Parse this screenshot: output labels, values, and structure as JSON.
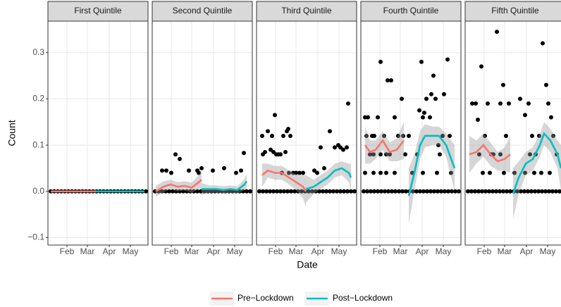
{
  "chart_data": {
    "type": "scatter",
    "x_label": "Date",
    "y_label": "Count",
    "xlim": [
      4,
      146
    ],
    "xticks": [
      {
        "value": 31,
        "label": "Feb"
      },
      {
        "value": 60,
        "label": "Mar"
      },
      {
        "value": 91,
        "label": "Apr"
      },
      {
        "value": 121,
        "label": "May"
      }
    ],
    "ylim": [
      -0.116,
      0.368
    ],
    "yticks": [
      {
        "value": -0.1,
        "label": "−0.1"
      },
      {
        "value": 0,
        "label": "0.0"
      },
      0.1,
      0.2,
      0.3
    ],
    "grid": true,
    "legend": "bottom",
    "point_color": "#000000",
    "band_color": "#999999",
    "series": [
      {
        "name": "Pre−Lockdown",
        "color": "#F8766D"
      },
      {
        "name": "Post−Lockdown",
        "color": "#00BFC4"
      }
    ],
    "facets": [
      {
        "title": "First Quintile",
        "points": {
          "x": [
            8,
            13,
            18,
            23,
            28,
            33,
            38,
            43,
            48,
            53,
            58,
            63,
            68,
            73,
            78,
            83,
            88,
            93,
            98,
            103,
            108,
            113,
            118,
            123,
            128,
            133,
            138,
            143
          ],
          "values": [
            0,
            0,
            0,
            0,
            0,
            0,
            0,
            0,
            0,
            0,
            0,
            0,
            0,
            0,
            0,
            0,
            0,
            0,
            0,
            0,
            0,
            0,
            0,
            0,
            0,
            0,
            0,
            0
          ]
        },
        "smooth": [
          {
            "x": [
              8,
              40,
              72
            ],
            "values": [
              0,
              0,
              0
            ],
            "lower": [
              0,
              0,
              0
            ],
            "upper": [
              0,
              0,
              0
            ]
          },
          {
            "x": [
              72,
              106,
              141
            ],
            "values": [
              0,
              0,
              0
            ],
            "lower": [
              0,
              0,
              0
            ],
            "upper": [
              0,
              0,
              0
            ]
          }
        ]
      },
      {
        "title": "Second Quintile",
        "points": {
          "x": [
            8,
            13,
            18,
            23,
            28,
            33,
            38,
            43,
            48,
            53,
            58,
            63,
            68,
            73,
            78,
            83,
            88,
            93,
            98,
            103,
            108,
            113,
            118,
            123,
            128,
            133,
            138,
            143,
            18,
            24,
            31,
            37,
            43,
            56,
            70,
            74,
            90,
            106,
            123,
            130,
            134,
            68
          ],
          "values": [
            0,
            0,
            0,
            0,
            0,
            0,
            0,
            0,
            0,
            0,
            0,
            0,
            0,
            0,
            0,
            0,
            0,
            0,
            0,
            0,
            0,
            0,
            0,
            0,
            0,
            0,
            0,
            0,
            0.045,
            0.045,
            0.04,
            0.08,
            0.07,
            0.045,
            0.04,
            0.05,
            0.045,
            0.05,
            0.04,
            0.045,
            0.083,
            0.045
          ]
        },
        "smooth": [
          {
            "x": [
              9,
              20,
              30,
              40,
              50,
              60,
              70,
              74
            ],
            "values": [
              0,
              0.01,
              0.015,
              0.01,
              0.012,
              0.008,
              0.02,
              0.025
            ],
            "lower": [
              -0.012,
              -0.002,
              0.005,
              0.0,
              0.002,
              -0.003,
              0.005,
              0.005
            ],
            "upper": [
              0.012,
              0.022,
              0.025,
              0.02,
              0.022,
              0.019,
              0.035,
              0.045
            ]
          },
          {
            "x": [
              74,
              85,
              95,
              105,
              115,
              125,
              135,
              138
            ],
            "values": [
              0.005,
              0.005,
              0.005,
              0.003,
              0.005,
              0.003,
              0.015,
              0.022
            ],
            "lower": [
              -0.008,
              -0.003,
              -0.003,
              -0.005,
              -0.003,
              -0.005,
              0.003,
              0.005
            ],
            "upper": [
              0.018,
              0.013,
              0.013,
              0.011,
              0.013,
              0.011,
              0.027,
              0.039
            ]
          }
        ]
      },
      {
        "title": "Third Quintile",
        "points": {
          "x": [
            8,
            13,
            18,
            23,
            28,
            33,
            38,
            43,
            48,
            53,
            58,
            63,
            68,
            73,
            78,
            83,
            88,
            93,
            98,
            103,
            108,
            113,
            118,
            123,
            128,
            133,
            138,
            143,
            12,
            13,
            16,
            20,
            24,
            26,
            28,
            30,
            32,
            35,
            38,
            42,
            45,
            47,
            49,
            52,
            40,
            50,
            56,
            60,
            65,
            70,
            86,
            95,
            100,
            108,
            115,
            120,
            123,
            127,
            132,
            134,
            90
          ],
          "values": [
            0,
            0,
            0,
            0,
            0,
            0,
            0,
            0,
            0,
            0,
            0,
            0,
            0,
            0,
            0,
            0,
            0,
            0,
            0,
            0,
            0,
            0,
            0,
            0,
            0,
            0,
            0,
            0,
            0.12,
            0.08,
            0.085,
            0.13,
            0.09,
            0.12,
            0.085,
            0.165,
            0.08,
            0.08,
            0.08,
            0.12,
            0.085,
            0.13,
            0.135,
            0.12,
            0.04,
            0.04,
            0.04,
            0.04,
            0.04,
            0.04,
            0.045,
            0.095,
            0.05,
            0.13,
            0.095,
            0.1,
            0.095,
            0.09,
            0.095,
            0.19,
            0.04
          ]
        },
        "smooth": [
          {
            "x": [
              12,
              20,
              30,
              40,
              50,
              60,
              70,
              74
            ],
            "values": [
              0.035,
              0.045,
              0.04,
              0.04,
              0.03,
              0.02,
              0.01,
              0.0
            ],
            "lower": [
              0.01,
              0.03,
              0.025,
              0.025,
              0.015,
              0.003,
              -0.015,
              -0.035
            ],
            "upper": [
              0.06,
              0.06,
              0.055,
              0.055,
              0.045,
              0.037,
              0.035,
              0.035
            ]
          },
          {
            "x": [
              74,
              85,
              95,
              105,
              115,
              125,
              135,
              138
            ],
            "values": [
              0.005,
              0.01,
              0.02,
              0.03,
              0.045,
              0.05,
              0.04,
              0.03
            ],
            "lower": [
              -0.025,
              -0.005,
              0.005,
              0.015,
              0.03,
              0.035,
              0.02,
              0.0
            ],
            "upper": [
              0.035,
              0.025,
              0.035,
              0.045,
              0.06,
              0.065,
              0.06,
              0.06
            ]
          }
        ]
      },
      {
        "title": "Fourth Quintile",
        "points": {
          "x": [
            8,
            13,
            18,
            23,
            28,
            33,
            38,
            43,
            48,
            53,
            58,
            63,
            68,
            73,
            78,
            83,
            88,
            93,
            98,
            103,
            108,
            113,
            118,
            123,
            128,
            133,
            138,
            143,
            10,
            12,
            14,
            20,
            23,
            28,
            32,
            37,
            42,
            47,
            52,
            57,
            62,
            64,
            17,
            22,
            32,
            40,
            45,
            67,
            10,
            22,
            32,
            40,
            52,
            72,
            77,
            84,
            87,
            90,
            92,
            94,
            97,
            102,
            104,
            107,
            110,
            114,
            116,
            120,
            122,
            127,
            130,
            132,
            112,
            92
          ],
          "values": [
            0,
            0,
            0,
            0,
            0,
            0,
            0,
            0,
            0,
            0,
            0,
            0,
            0,
            0,
            0,
            0,
            0,
            0,
            0,
            0,
            0,
            0,
            0,
            0,
            0,
            0,
            0,
            0,
            0.16,
            0.12,
            0.16,
            0.12,
            0.12,
            0.16,
            0.28,
            0.12,
            0.24,
            0.24,
            0.16,
            0.12,
            0.2,
            0.12,
            0.08,
            0.08,
            0.08,
            0.08,
            0.08,
            0.08,
            0.04,
            0.04,
            0.04,
            0.04,
            0.04,
            0.12,
            0.04,
            0.08,
            0.175,
            0.28,
            0.16,
            0.17,
            0.2,
            0.16,
            0.21,
            0.25,
            0.2,
            0.1,
            0.08,
            0.12,
            0.21,
            0.285,
            0.12,
            0.04,
            0.04,
            0.04
          ]
        },
        "smooth": [
          {
            "x": [
              10,
              17,
              25,
              35,
              45,
              55,
              65
            ],
            "values": [
              0.1,
              0.085,
              0.09,
              0.11,
              0.085,
              0.09,
              0.11
            ],
            "lower": [
              0.06,
              0.06,
              0.07,
              0.09,
              0.065,
              0.065,
              0.07
            ],
            "upper": [
              0.14,
              0.11,
              0.11,
              0.13,
              0.105,
              0.115,
              0.15
            ]
          },
          {
            "x": [
              72,
              80,
              88,
              95,
              105,
              115,
              125,
              137
            ],
            "values": [
              -0.01,
              0.04,
              0.1,
              0.12,
              0.12,
              0.12,
              0.1,
              0.05
            ],
            "lower": [
              -0.07,
              0.0,
              0.07,
              0.095,
              0.1,
              0.1,
              0.075,
              0.0
            ],
            "upper": [
              0.05,
              0.08,
              0.13,
              0.145,
              0.14,
              0.14,
              0.125,
              0.1
            ]
          }
        ]
      },
      {
        "title": "Fifth Quintile",
        "points": {
          "x": [
            8,
            13,
            18,
            23,
            28,
            33,
            38,
            43,
            48,
            53,
            58,
            63,
            68,
            73,
            78,
            83,
            88,
            93,
            98,
            103,
            108,
            113,
            118,
            123,
            128,
            133,
            138,
            143,
            14,
            19,
            22,
            27,
            32,
            36,
            41,
            49,
            54,
            58,
            62,
            66,
            24,
            29,
            39,
            44,
            54,
            59,
            74,
            82,
            89,
            94,
            99,
            104,
            109,
            114,
            119,
            122,
            126,
            129,
            134,
            96,
            102,
            112,
            124,
            89
          ],
          "values": [
            0,
            0,
            0,
            0,
            0,
            0,
            0,
            0,
            0,
            0,
            0,
            0,
            0,
            0,
            0,
            0,
            0,
            0,
            0,
            0,
            0,
            0,
            0,
            0,
            0,
            0,
            0,
            0,
            0.19,
            0.19,
            0.155,
            0.27,
            0.12,
            0.19,
            0.08,
            0.345,
            0.19,
            0.23,
            0.12,
            0.19,
            0.08,
            0.04,
            0.04,
            0.08,
            0.08,
            0.04,
            0.04,
            0.2,
            0.165,
            0.19,
            0.12,
            0.08,
            0.12,
            0.32,
            0.23,
            0.19,
            0.16,
            0.12,
            0.08,
            0.08,
            0.04,
            0.04,
            0.04,
            0.04
          ]
        },
        "smooth": [
          {
            "x": [
              10,
              20,
              30,
              40,
              50,
              60,
              68
            ],
            "values": [
              0.08,
              0.085,
              0.1,
              0.08,
              0.065,
              0.07,
              0.08
            ],
            "lower": [
              0.04,
              0.06,
              0.075,
              0.055,
              0.045,
              0.045,
              0.04
            ],
            "upper": [
              0.12,
              0.11,
              0.125,
              0.105,
              0.085,
              0.095,
              0.12
            ]
          },
          {
            "x": [
              72,
              80,
              90,
              100,
              110,
              116,
              125,
              135,
              140
            ],
            "values": [
              -0.005,
              0.03,
              0.06,
              0.07,
              0.1,
              0.125,
              0.11,
              0.08,
              0.05
            ],
            "lower": [
              -0.06,
              -0.005,
              0.035,
              0.045,
              0.075,
              0.1,
              0.085,
              0.05,
              0.0
            ],
            "upper": [
              0.05,
              0.065,
              0.085,
              0.095,
              0.125,
              0.15,
              0.135,
              0.11,
              0.1
            ]
          }
        ]
      }
    ]
  }
}
